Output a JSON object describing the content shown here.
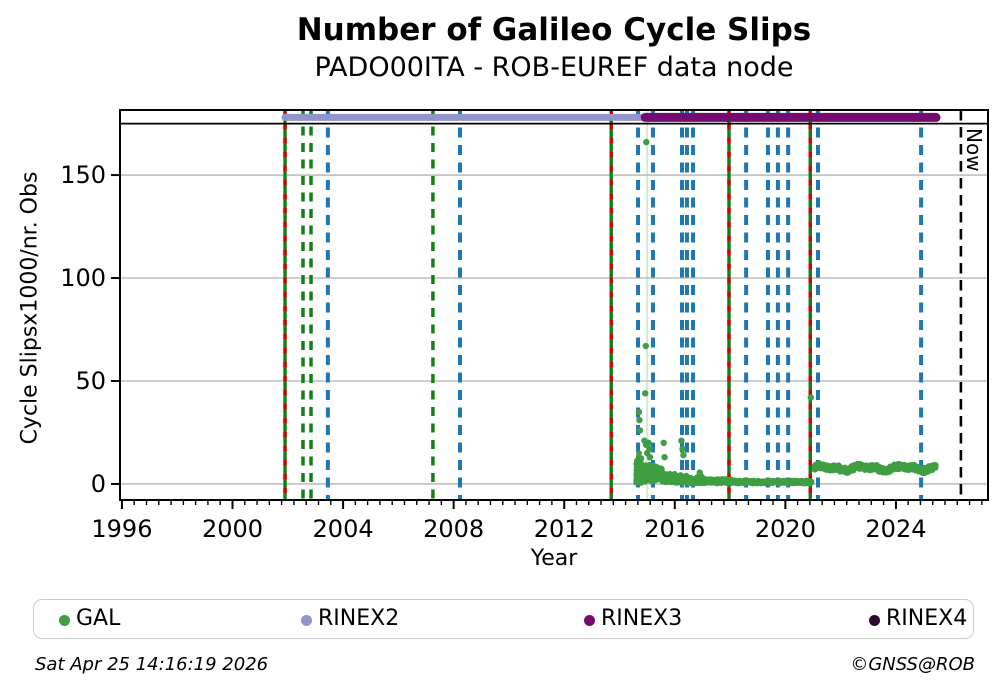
{
  "header": {
    "title": "Number of Galileo Cycle Slips",
    "subtitle": "PADO00ITA - ROB-EUREF data node"
  },
  "footer": {
    "timestamp": "Sat Apr 25 14:16:19 2026",
    "copyright": "©GNSS@ROB"
  },
  "chart_data": {
    "type": "scatter",
    "title": "Number of Galileo Cycle Slips",
    "subtitle": "PADO00ITA - ROB-EUREF data node",
    "xlabel": "Year",
    "ylabel": "Cycle Slipsx1000/nr. Obs",
    "xlim": [
      1995.93,
      2027.33
    ],
    "ylim": [
      -7.8,
      181.6
    ],
    "grid": "horizontal-only",
    "x_major_ticks": [
      1996,
      2000,
      2004,
      2008,
      2012,
      2016,
      2020,
      2024
    ],
    "x_minor_step": 0.4444,
    "y_major_ticks": [
      0,
      50,
      100,
      150
    ],
    "hline": {
      "y": 175,
      "color": "#000000"
    },
    "now_line": {
      "year": 2026.35,
      "label": "Now",
      "color": "#000000"
    },
    "pale_marker_line": {
      "year": 2015.0,
      "color": "rgba(160,205,160,0.45)"
    },
    "colors": {
      "gal_point": "#3f9e42",
      "green_event": "#128012",
      "green_red_solid": "#0f7d12",
      "red_overlay": "#d40000",
      "blue_event": "#1f77b4",
      "rinex2": "#9294cc",
      "rinex3": "#740b70",
      "rinex4": "#2d0a31",
      "grid": "#b2b2b2"
    },
    "rinex_bars": [
      {
        "name": "RINEX2",
        "start": 2001.9,
        "end": 2015.0,
        "y": 178,
        "color": "#9294cc",
        "thickness": 7
      },
      {
        "name": "RINEX3",
        "start": 2014.93,
        "end": 2025.45,
        "y": 178,
        "color": "#740b70",
        "thickness": 9
      }
    ],
    "event_lines": [
      {
        "year": 2001.9,
        "style": "green-red"
      },
      {
        "year": 2002.55,
        "style": "green-dashed"
      },
      {
        "year": 2002.84,
        "style": "green-dashed"
      },
      {
        "year": 2003.45,
        "style": "blue-dashed"
      },
      {
        "year": 2007.25,
        "style": "green-dashed"
      },
      {
        "year": 2008.23,
        "style": "blue-dashed"
      },
      {
        "year": 2013.7,
        "style": "green-red"
      },
      {
        "year": 2014.67,
        "style": "blue-dashed"
      },
      {
        "year": 2015.21,
        "style": "blue-dashed"
      },
      {
        "year": 2016.26,
        "style": "blue-dashed"
      },
      {
        "year": 2016.44,
        "style": "blue-dashed"
      },
      {
        "year": 2016.66,
        "style": "blue-dashed"
      },
      {
        "year": 2017.96,
        "style": "green-red"
      },
      {
        "year": 2018.58,
        "style": "blue-dashed"
      },
      {
        "year": 2019.37,
        "style": "blue-dashed"
      },
      {
        "year": 2019.73,
        "style": "blue-dashed"
      },
      {
        "year": 2020.1,
        "style": "blue-dashed"
      },
      {
        "year": 2020.9,
        "style": "green-red"
      },
      {
        "year": 2021.18,
        "style": "blue-dashed"
      },
      {
        "year": 2024.91,
        "style": "blue-dashed"
      }
    ],
    "series": [
      {
        "name": "GAL",
        "color": "#3f9e42",
        "segments": [
          {
            "x0": 2014.6,
            "x1": 2014.8,
            "n": 300,
            "ymin": 0.5,
            "ymax": 16.0,
            "bias": "low"
          },
          {
            "x0": 2014.8,
            "x1": 2015.55,
            "n": 430,
            "ymin": 0.8,
            "ymax": 9.5,
            "bias": "mid"
          },
          {
            "x0": 2015.55,
            "x1": 2016.0,
            "n": 200,
            "ymin": 0.4,
            "ymax": 5.5,
            "bias": "mid"
          },
          {
            "x0": 2016.0,
            "x1": 2016.5,
            "n": 160,
            "ymin": 0.3,
            "ymax": 4.5,
            "bias": "mid"
          },
          {
            "x0": 2016.5,
            "x1": 2017.1,
            "n": 170,
            "ymin": 0.3,
            "ymax": 3.8,
            "bias": "low"
          },
          {
            "x0": 2017.1,
            "x1": 2018.1,
            "n": 200,
            "ymin": 0.2,
            "ymax": 2.6,
            "bias": "mid"
          },
          {
            "x0": 2018.1,
            "x1": 2020.95,
            "n": 430,
            "ymin": 0.1,
            "ymax": 1.8,
            "bias": "mid"
          },
          {
            "x0": 2021.03,
            "x1": 2025.45,
            "n": 950,
            "wave": {
              "base": 7.7,
              "amp1": 0.8,
              "freq1": 4.4,
              "amp2": 0.5,
              "freq2": 9.1,
              "spread": 1.6,
              "clampMin": 5.2,
              "clampMax": 10.8
            }
          }
        ],
        "outliers": [
          [
            2014.7,
            35
          ],
          [
            2014.72,
            31
          ],
          [
            2014.74,
            26
          ],
          [
            2014.9,
            21
          ],
          [
            2014.93,
            44
          ],
          [
            2014.95,
            67
          ],
          [
            2014.96,
            19
          ],
          [
            2014.97,
            166
          ],
          [
            2015.0,
            15
          ],
          [
            2015.05,
            20
          ],
          [
            2015.08,
            17
          ],
          [
            2015.1,
            13
          ],
          [
            2015.6,
            20
          ],
          [
            2015.63,
            13
          ],
          [
            2016.24,
            21
          ],
          [
            2016.28,
            17
          ],
          [
            2016.31,
            14
          ],
          [
            2016.9,
            5.5
          ],
          [
            2020.92,
            42
          ]
        ]
      }
    ],
    "legend": {
      "position": "bottom",
      "items": [
        {
          "label": "GAL",
          "color": "#3f9e42"
        },
        {
          "label": "RINEX2",
          "color": "#9294cc"
        },
        {
          "label": "RINEX3",
          "color": "#740b70"
        },
        {
          "label": "RINEX4",
          "color": "#2d0a31"
        }
      ]
    }
  }
}
